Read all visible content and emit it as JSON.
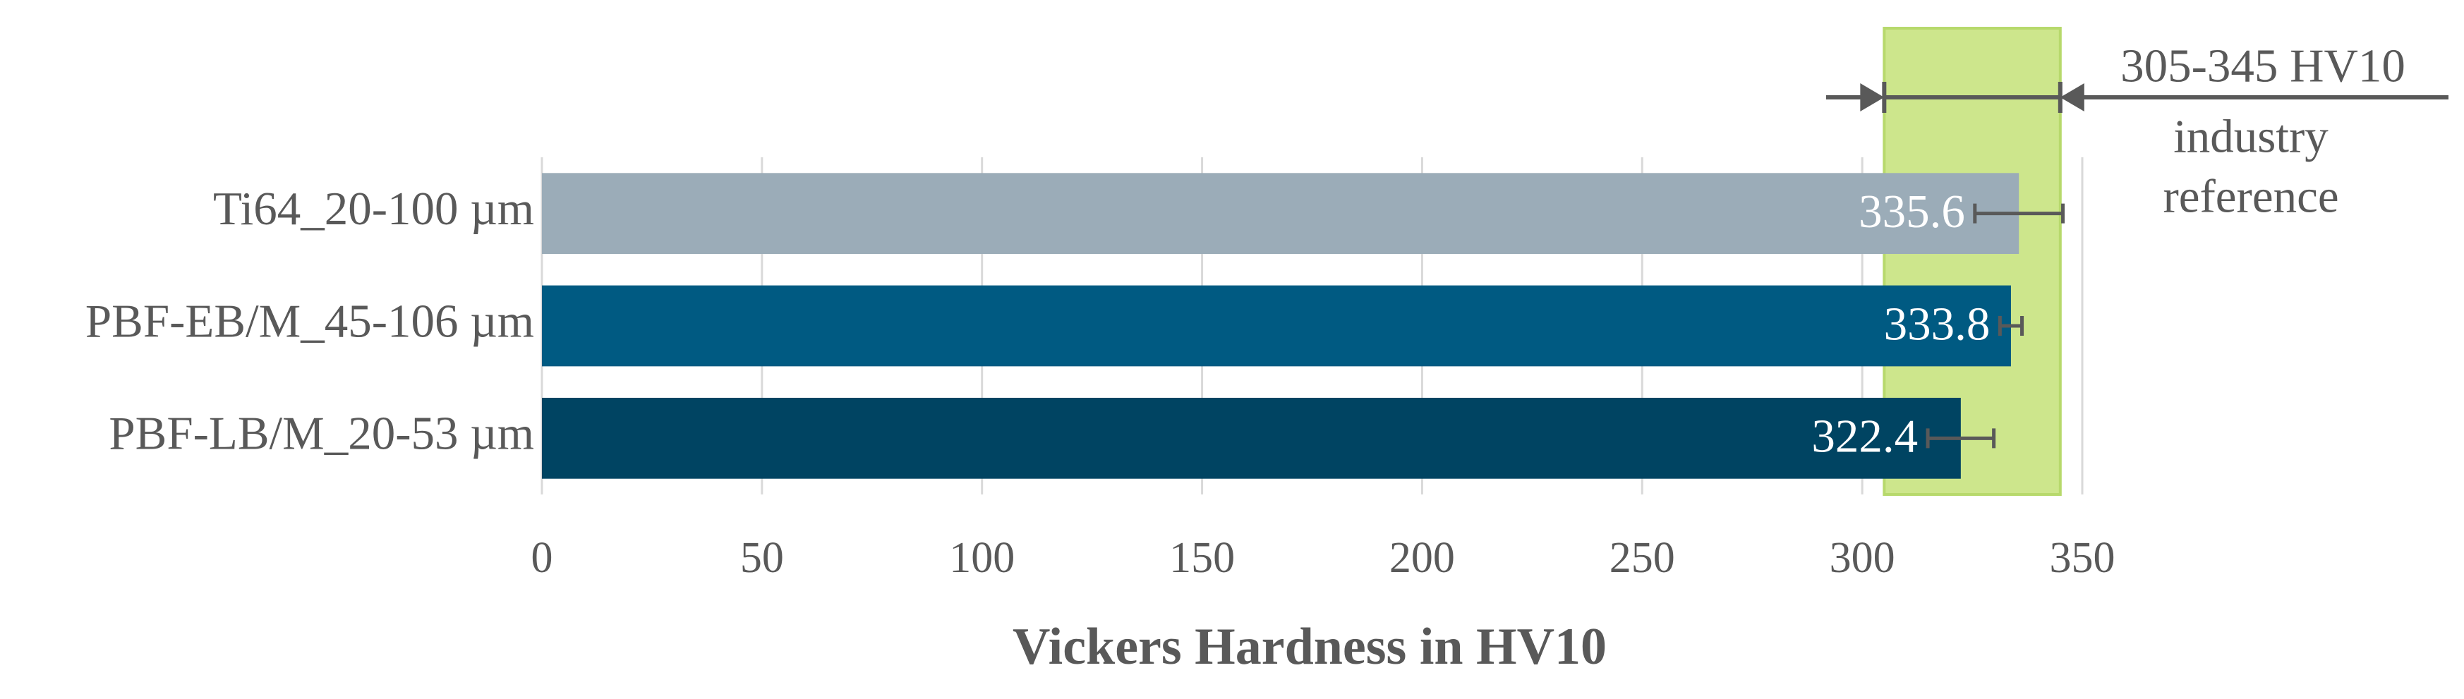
{
  "chart_data": {
    "type": "bar",
    "orientation": "horizontal",
    "x_label": "Vickers Hardness in HV10",
    "categories": [
      "Ti64_20-100 µm",
      "PBF-EB/M_45-106 µm",
      "PBF-LB/M_20-53 µm"
    ],
    "values": [
      335.6,
      333.8,
      322.4
    ],
    "errors": [
      10,
      2.5,
      7.5
    ],
    "colors": [
      "#9bacb8",
      "#005a82",
      "#004462"
    ],
    "xlim": [
      0,
      350
    ],
    "xticks": [
      0,
      50,
      100,
      150,
      200,
      250,
      300,
      350
    ],
    "grid": true,
    "reference": {
      "range": [
        305,
        345
      ],
      "label": "305-345 HV10",
      "note": [
        "industry",
        "reference"
      ],
      "color": "#cde68c"
    }
  }
}
